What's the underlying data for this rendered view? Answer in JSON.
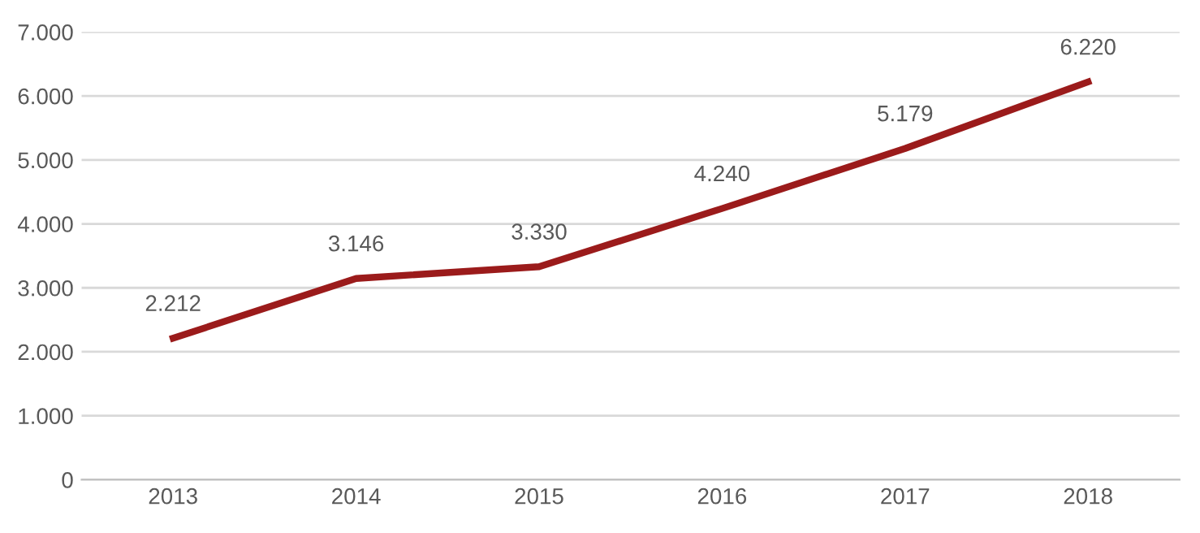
{
  "chart_data": {
    "type": "line",
    "categories": [
      "2013",
      "2014",
      "2015",
      "2016",
      "2017",
      "2018"
    ],
    "series": [
      {
        "color": "#9b1b1b",
        "values": [
          2212,
          3146,
          3330,
          4240,
          5179,
          6220
        ],
        "value_labels": [
          "2.212",
          "3.146",
          "3.330",
          "4.240",
          "5.179",
          "6.220"
        ]
      }
    ],
    "ylim": [
      0,
      7000
    ],
    "yticks": [
      {
        "value": 0,
        "label": "0"
      },
      {
        "value": 1000,
        "label": "1.000"
      },
      {
        "value": 2000,
        "label": "2.000"
      },
      {
        "value": 3000,
        "label": "3.000"
      },
      {
        "value": 4000,
        "label": "4.000"
      },
      {
        "value": 5000,
        "label": "5.000"
      },
      {
        "value": 6000,
        "label": "6.000"
      },
      {
        "value": 7000,
        "label": "7.000"
      }
    ],
    "grid": "y",
    "marker": "none",
    "line_style": "solid"
  }
}
